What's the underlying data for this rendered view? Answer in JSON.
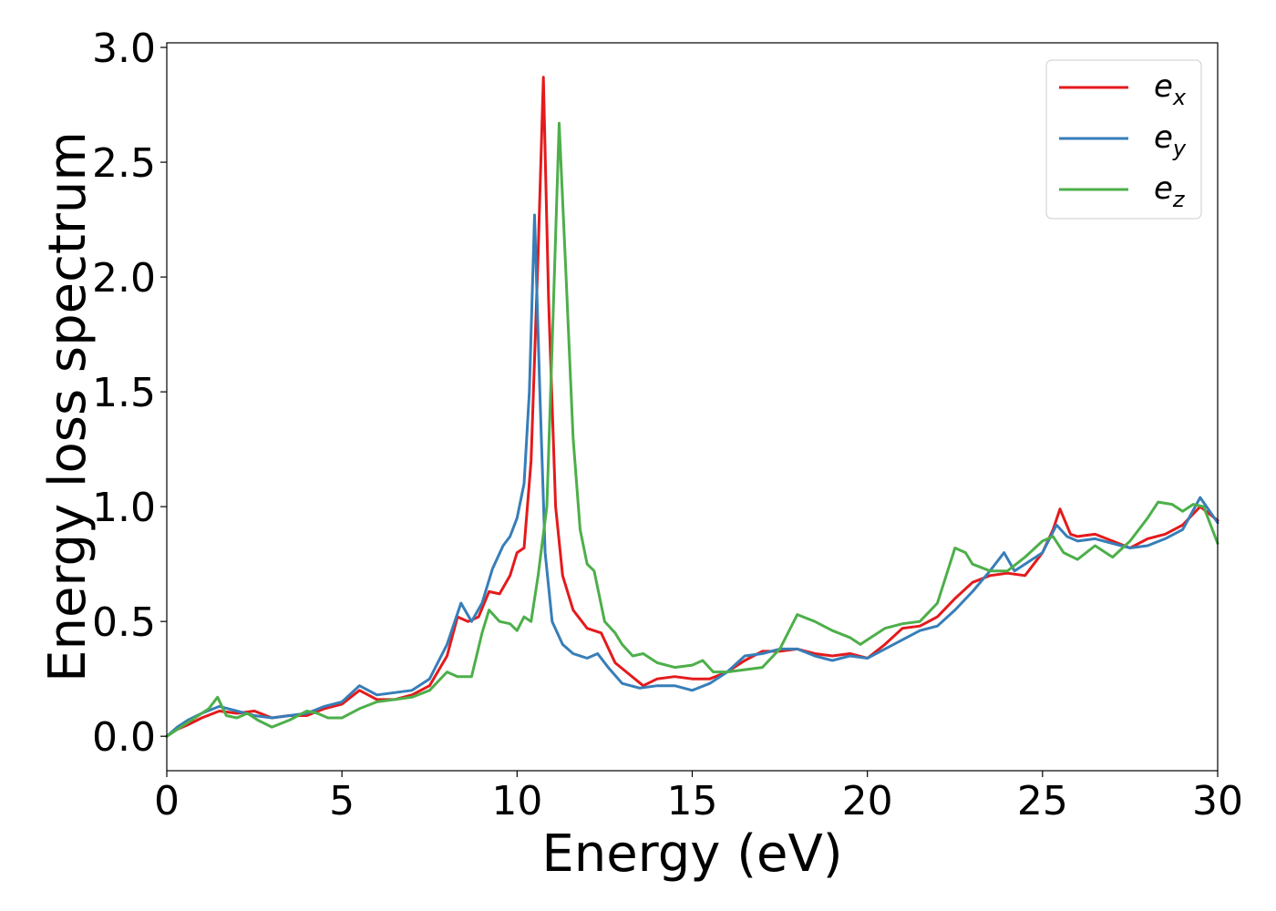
{
  "chart_data": {
    "type": "line",
    "title": "",
    "xlabel": "Energy (eV)",
    "ylabel": "Energy loss spectrum",
    "xlim": [
      0,
      30
    ],
    "ylim": [
      -0.15,
      3.02
    ],
    "xticks": [
      0,
      5,
      10,
      15,
      20,
      25,
      30
    ],
    "yticks": [
      0.0,
      0.5,
      1.0,
      1.5,
      2.0,
      2.5,
      3.0
    ],
    "ytick_labels": [
      "0.0",
      "0.5",
      "1.0",
      "1.5",
      "2.0",
      "2.5",
      "3.0"
    ],
    "grid": false,
    "legend_position": "top-right",
    "series": [
      {
        "name": "e_x",
        "label_base": "e",
        "label_sub": "x",
        "color": "#e41a1c",
        "points": [
          [
            0,
            0
          ],
          [
            0.3,
            0.03
          ],
          [
            0.6,
            0.05
          ],
          [
            1,
            0.08
          ],
          [
            1.5,
            0.11
          ],
          [
            2,
            0.1
          ],
          [
            2.5,
            0.11
          ],
          [
            3,
            0.08
          ],
          [
            3.5,
            0.09
          ],
          [
            4,
            0.09
          ],
          [
            4.5,
            0.12
          ],
          [
            5,
            0.14
          ],
          [
            5.5,
            0.2
          ],
          [
            6,
            0.16
          ],
          [
            6.5,
            0.16
          ],
          [
            7,
            0.18
          ],
          [
            7.5,
            0.22
          ],
          [
            8,
            0.35
          ],
          [
            8.3,
            0.52
          ],
          [
            8.6,
            0.5
          ],
          [
            8.9,
            0.52
          ],
          [
            9.2,
            0.63
          ],
          [
            9.5,
            0.62
          ],
          [
            9.8,
            0.7
          ],
          [
            10,
            0.8
          ],
          [
            10.2,
            0.82
          ],
          [
            10.4,
            1.2
          ],
          [
            10.6,
            2.1
          ],
          [
            10.75,
            2.87
          ],
          [
            10.9,
            1.9
          ],
          [
            11.1,
            1.0
          ],
          [
            11.3,
            0.7
          ],
          [
            11.6,
            0.55
          ],
          [
            12,
            0.47
          ],
          [
            12.4,
            0.45
          ],
          [
            12.8,
            0.32
          ],
          [
            13.2,
            0.27
          ],
          [
            13.6,
            0.22
          ],
          [
            14,
            0.25
          ],
          [
            14.5,
            0.26
          ],
          [
            15,
            0.25
          ],
          [
            15.5,
            0.25
          ],
          [
            16,
            0.28
          ],
          [
            16.5,
            0.33
          ],
          [
            17,
            0.37
          ],
          [
            17.5,
            0.37
          ],
          [
            18,
            0.38
          ],
          [
            18.5,
            0.36
          ],
          [
            19,
            0.35
          ],
          [
            19.5,
            0.36
          ],
          [
            20,
            0.34
          ],
          [
            20.5,
            0.4
          ],
          [
            21,
            0.47
          ],
          [
            21.5,
            0.48
          ],
          [
            22,
            0.52
          ],
          [
            22.5,
            0.6
          ],
          [
            23,
            0.67
          ],
          [
            23.5,
            0.7
          ],
          [
            24,
            0.71
          ],
          [
            24.5,
            0.7
          ],
          [
            25,
            0.8
          ],
          [
            25.3,
            0.9
          ],
          [
            25.5,
            0.99
          ],
          [
            25.8,
            0.88
          ],
          [
            26,
            0.87
          ],
          [
            26.5,
            0.88
          ],
          [
            27,
            0.85
          ],
          [
            27.5,
            0.82
          ],
          [
            28,
            0.86
          ],
          [
            28.5,
            0.88
          ],
          [
            29,
            0.92
          ],
          [
            29.5,
            1.0
          ],
          [
            30,
            0.94
          ]
        ]
      },
      {
        "name": "e_y",
        "label_base": "e",
        "label_sub": "y",
        "color": "#377eb8",
        "points": [
          [
            0,
            0
          ],
          [
            0.3,
            0.04
          ],
          [
            0.6,
            0.07
          ],
          [
            1,
            0.1
          ],
          [
            1.5,
            0.13
          ],
          [
            2,
            0.11
          ],
          [
            2.5,
            0.09
          ],
          [
            3,
            0.08
          ],
          [
            3.5,
            0.09
          ],
          [
            4,
            0.1
          ],
          [
            4.5,
            0.13
          ],
          [
            5,
            0.15
          ],
          [
            5.5,
            0.22
          ],
          [
            6,
            0.18
          ],
          [
            6.5,
            0.19
          ],
          [
            7,
            0.2
          ],
          [
            7.5,
            0.25
          ],
          [
            8,
            0.4
          ],
          [
            8.4,
            0.58
          ],
          [
            8.7,
            0.5
          ],
          [
            9,
            0.58
          ],
          [
            9.3,
            0.73
          ],
          [
            9.6,
            0.83
          ],
          [
            9.8,
            0.87
          ],
          [
            10,
            0.95
          ],
          [
            10.2,
            1.1
          ],
          [
            10.35,
            1.5
          ],
          [
            10.5,
            2.27
          ],
          [
            10.65,
            1.5
          ],
          [
            10.8,
            0.8
          ],
          [
            11,
            0.5
          ],
          [
            11.3,
            0.4
          ],
          [
            11.6,
            0.36
          ],
          [
            12,
            0.34
          ],
          [
            12.3,
            0.36
          ],
          [
            12.6,
            0.3
          ],
          [
            13,
            0.23
          ],
          [
            13.5,
            0.21
          ],
          [
            14,
            0.22
          ],
          [
            14.5,
            0.22
          ],
          [
            15,
            0.2
          ],
          [
            15.5,
            0.23
          ],
          [
            16,
            0.28
          ],
          [
            16.5,
            0.35
          ],
          [
            17,
            0.36
          ],
          [
            17.5,
            0.38
          ],
          [
            18,
            0.38
          ],
          [
            18.5,
            0.35
          ],
          [
            19,
            0.33
          ],
          [
            19.5,
            0.35
          ],
          [
            20,
            0.34
          ],
          [
            20.5,
            0.38
          ],
          [
            21,
            0.42
          ],
          [
            21.5,
            0.46
          ],
          [
            22,
            0.48
          ],
          [
            22.5,
            0.55
          ],
          [
            23,
            0.63
          ],
          [
            23.5,
            0.72
          ],
          [
            23.9,
            0.8
          ],
          [
            24.2,
            0.72
          ],
          [
            24.5,
            0.75
          ],
          [
            25,
            0.8
          ],
          [
            25.4,
            0.92
          ],
          [
            25.7,
            0.87
          ],
          [
            26,
            0.85
          ],
          [
            26.5,
            0.86
          ],
          [
            27,
            0.84
          ],
          [
            27.5,
            0.82
          ],
          [
            28,
            0.83
          ],
          [
            28.5,
            0.86
          ],
          [
            29,
            0.9
          ],
          [
            29.5,
            1.04
          ],
          [
            30,
            0.93
          ]
        ]
      },
      {
        "name": "e_z",
        "label_base": "e",
        "label_sub": "z",
        "color": "#4daf4a",
        "points": [
          [
            0,
            0
          ],
          [
            0.3,
            0.03
          ],
          [
            0.6,
            0.06
          ],
          [
            1,
            0.1
          ],
          [
            1.2,
            0.12
          ],
          [
            1.45,
            0.17
          ],
          [
            1.7,
            0.09
          ],
          [
            2,
            0.08
          ],
          [
            2.3,
            0.1
          ],
          [
            2.6,
            0.07
          ],
          [
            3,
            0.04
          ],
          [
            3.5,
            0.07
          ],
          [
            4,
            0.11
          ],
          [
            4.3,
            0.1
          ],
          [
            4.6,
            0.08
          ],
          [
            5,
            0.08
          ],
          [
            5.5,
            0.12
          ],
          [
            6,
            0.15
          ],
          [
            6.5,
            0.16
          ],
          [
            7,
            0.17
          ],
          [
            7.5,
            0.2
          ],
          [
            8,
            0.28
          ],
          [
            8.3,
            0.26
          ],
          [
            8.7,
            0.26
          ],
          [
            9,
            0.45
          ],
          [
            9.2,
            0.55
          ],
          [
            9.5,
            0.5
          ],
          [
            9.8,
            0.49
          ],
          [
            10,
            0.46
          ],
          [
            10.2,
            0.52
          ],
          [
            10.4,
            0.5
          ],
          [
            10.6,
            0.7
          ],
          [
            10.85,
            1.0
          ],
          [
            11,
            1.7
          ],
          [
            11.2,
            2.67
          ],
          [
            11.4,
            2.0
          ],
          [
            11.6,
            1.3
          ],
          [
            11.8,
            0.9
          ],
          [
            12,
            0.75
          ],
          [
            12.2,
            0.72
          ],
          [
            12.5,
            0.5
          ],
          [
            12.8,
            0.45
          ],
          [
            13,
            0.4
          ],
          [
            13.3,
            0.35
          ],
          [
            13.6,
            0.36
          ],
          [
            14,
            0.32
          ],
          [
            14.5,
            0.3
          ],
          [
            15,
            0.31
          ],
          [
            15.3,
            0.33
          ],
          [
            15.6,
            0.28
          ],
          [
            16,
            0.28
          ],
          [
            16.5,
            0.29
          ],
          [
            17,
            0.3
          ],
          [
            17.5,
            0.38
          ],
          [
            18,
            0.53
          ],
          [
            18.5,
            0.5
          ],
          [
            19,
            0.46
          ],
          [
            19.5,
            0.43
          ],
          [
            19.8,
            0.4
          ],
          [
            20,
            0.42
          ],
          [
            20.5,
            0.47
          ],
          [
            21,
            0.49
          ],
          [
            21.5,
            0.5
          ],
          [
            22,
            0.58
          ],
          [
            22.5,
            0.82
          ],
          [
            22.8,
            0.8
          ],
          [
            23,
            0.75
          ],
          [
            23.5,
            0.72
          ],
          [
            24,
            0.72
          ],
          [
            24.5,
            0.78
          ],
          [
            25,
            0.85
          ],
          [
            25.3,
            0.87
          ],
          [
            25.6,
            0.8
          ],
          [
            26,
            0.77
          ],
          [
            26.5,
            0.83
          ],
          [
            27,
            0.78
          ],
          [
            27.5,
            0.85
          ],
          [
            28,
            0.95
          ],
          [
            28.3,
            1.02
          ],
          [
            28.7,
            1.01
          ],
          [
            29,
            0.98
          ],
          [
            29.3,
            1.01
          ],
          [
            29.6,
            1.0
          ],
          [
            30,
            0.84
          ]
        ]
      }
    ]
  }
}
